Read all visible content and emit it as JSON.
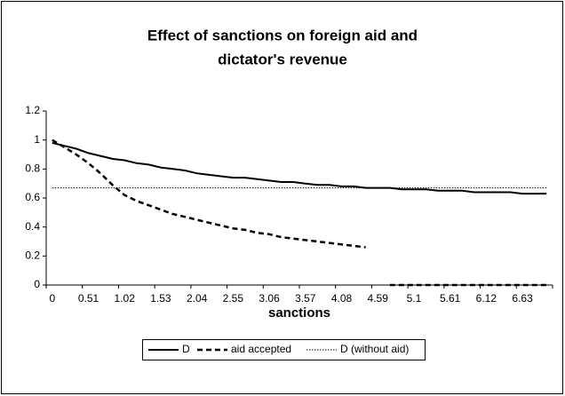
{
  "chart_data": {
    "type": "line",
    "title": [
      "Effect of sanctions on foreign aid and",
      "dictator's revenue"
    ],
    "x_label": "sanctions",
    "categories": [
      "0",
      null,
      null,
      "0.51",
      null,
      null,
      "1.02",
      null,
      null,
      "1.53",
      null,
      null,
      "2.04",
      null,
      null,
      "2.55",
      null,
      null,
      "3.06",
      null,
      null,
      "3.57",
      null,
      null,
      "4.08",
      null,
      null,
      "4.59",
      null,
      null,
      "5.1",
      null,
      null,
      "5.61",
      null,
      null,
      "6.12",
      null,
      null,
      "6.63",
      null,
      null
    ],
    "series": [
      {
        "name": "D",
        "color": "#000000",
        "style": "solid",
        "values": [
          0.98,
          0.96,
          0.94,
          0.91,
          0.89,
          0.87,
          0.86,
          0.84,
          0.83,
          0.81,
          0.8,
          0.79,
          0.77,
          0.76,
          0.75,
          0.74,
          0.74,
          0.73,
          0.72,
          0.71,
          0.71,
          0.7,
          0.69,
          0.69,
          0.68,
          0.68,
          0.67,
          0.67,
          0.67,
          0.66,
          0.66,
          0.66,
          0.65,
          0.65,
          0.65,
          0.64,
          0.64,
          0.64,
          0.64,
          0.63,
          0.63,
          0.63
        ]
      },
      {
        "name": "aid accepted",
        "color": "#000000",
        "style": "dashed",
        "values": [
          1.0,
          0.95,
          0.9,
          0.84,
          0.77,
          0.69,
          0.62,
          0.58,
          0.55,
          0.52,
          0.49,
          0.47,
          0.45,
          0.43,
          0.41,
          0.39,
          0.38,
          0.36,
          0.35,
          0.33,
          0.32,
          0.31,
          0.3,
          0.29,
          0.28,
          0.27,
          0.26,
          null,
          0,
          0,
          0,
          0,
          0,
          0,
          0,
          0,
          0,
          0,
          0,
          0,
          0,
          0
        ]
      },
      {
        "name": "D (without aid)",
        "color": "#000000",
        "style": "dotted",
        "values": [
          0.67,
          0.67,
          0.67,
          0.67,
          0.67,
          0.67,
          0.67,
          0.67,
          0.67,
          0.67,
          0.67,
          0.67,
          0.67,
          0.67,
          0.67,
          0.67,
          0.67,
          0.67,
          0.67,
          0.67,
          0.67,
          0.67,
          0.67,
          0.67,
          0.67,
          0.67,
          0.67,
          0.67,
          0.67,
          0.67,
          0.67,
          0.67,
          0.67,
          0.67,
          0.67,
          0.67,
          0.67,
          0.67,
          0.67,
          0.67,
          0.67,
          0.67
        ]
      }
    ],
    "ylim": [
      0,
      1.2
    ],
    "yticks": [
      0,
      0.2,
      0.4,
      0.6,
      0.8,
      1,
      1.2
    ],
    "grid": false,
    "legend": "bottom"
  }
}
